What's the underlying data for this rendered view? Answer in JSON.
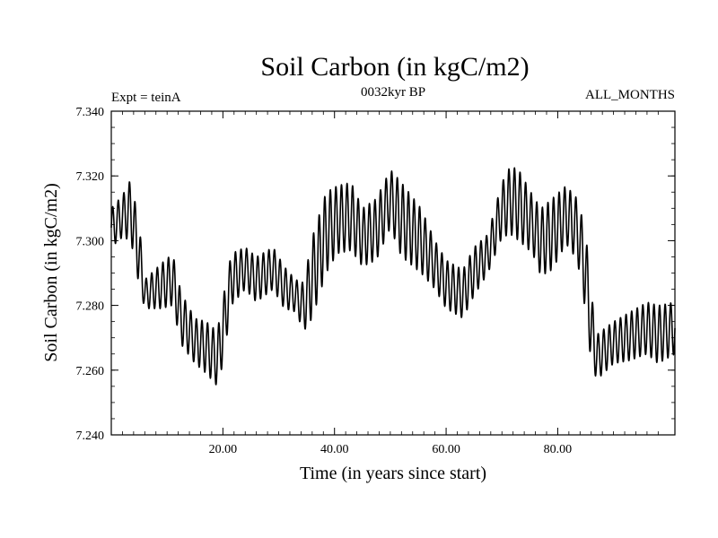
{
  "chart_data": {
    "type": "line",
    "title": "Soil Carbon (in kgC/m2)",
    "subtitle_left": "Expt = teinA",
    "subtitle_center": "0032kyr BP",
    "subtitle_right": "ALL_MONTHS",
    "xlabel": "Time (in years since start)",
    "ylabel": "Soil Carbon (in kgC/m2)",
    "xlim": [
      0,
      101
    ],
    "ylim": [
      7.24,
      7.34
    ],
    "x_ticks": [
      20,
      40,
      60,
      80
    ],
    "x_tick_labels": [
      "20.00",
      "40.00",
      "60.00",
      "80.00"
    ],
    "y_ticks": [
      7.24,
      7.26,
      7.28,
      7.3,
      7.32,
      7.34
    ],
    "y_tick_labels": [
      "7.240",
      "7.260",
      "7.280",
      "7.300",
      "7.320",
      "7.340"
    ],
    "cycle_years": 1,
    "series": [
      {
        "name": "Soil Carbon",
        "color": "#000000",
        "envelope_x": [
          0,
          2,
          3.5,
          5,
          6,
          9,
          11,
          12.5,
          15,
          17,
          19,
          20,
          21.5,
          24,
          26,
          29,
          31,
          33,
          34.5,
          36,
          38.5,
          40.5,
          43,
          45,
          47.5,
          50,
          52,
          55.5,
          58,
          60,
          63,
          65,
          67.5,
          70,
          71.5,
          73,
          75.5,
          77,
          79,
          81.5,
          83.5,
          85,
          86,
          87,
          90,
          93,
          96,
          98,
          101
        ],
        "envelope_min": [
          7.298,
          7.301,
          7.3,
          7.286,
          7.279,
          7.279,
          7.28,
          7.268,
          7.262,
          7.259,
          7.255,
          7.262,
          7.28,
          7.285,
          7.281,
          7.285,
          7.279,
          7.278,
          7.272,
          7.276,
          7.29,
          7.296,
          7.297,
          7.292,
          7.294,
          7.304,
          7.295,
          7.29,
          7.285,
          7.279,
          7.276,
          7.283,
          7.29,
          7.301,
          7.302,
          7.3,
          7.296,
          7.289,
          7.291,
          7.299,
          7.294,
          7.278,
          7.262,
          7.257,
          7.262,
          7.263,
          7.265,
          7.262,
          7.265
        ],
        "envelope_max": [
          7.31,
          7.314,
          7.319,
          7.305,
          7.288,
          7.293,
          7.296,
          7.284,
          7.276,
          7.275,
          7.272,
          7.282,
          7.296,
          7.298,
          7.295,
          7.298,
          7.292,
          7.288,
          7.287,
          7.301,
          7.315,
          7.317,
          7.318,
          7.31,
          7.313,
          7.322,
          7.318,
          7.31,
          7.3,
          7.294,
          7.291,
          7.298,
          7.302,
          7.318,
          7.323,
          7.322,
          7.314,
          7.31,
          7.313,
          7.317,
          7.313,
          7.303,
          7.284,
          7.271,
          7.275,
          7.278,
          7.281,
          7.28,
          7.281
        ]
      }
    ]
  }
}
